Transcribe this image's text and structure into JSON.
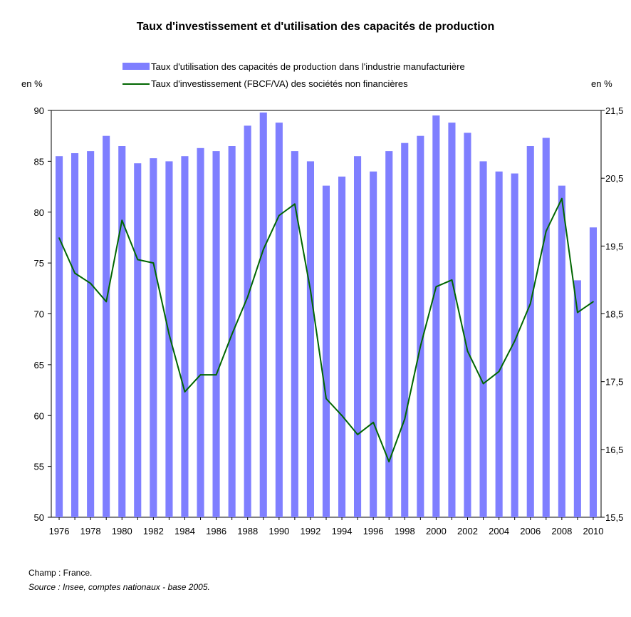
{
  "chart_data": {
    "type": "bar+line",
    "title": "Taux d'investissement et d'utilisation des capacités de production",
    "left_unit": "en %",
    "right_unit": "en %",
    "x": [
      1976,
      1977,
      1978,
      1979,
      1980,
      1981,
      1982,
      1983,
      1984,
      1985,
      1986,
      1987,
      1988,
      1989,
      1990,
      1991,
      1992,
      1993,
      1994,
      1995,
      1996,
      1997,
      1998,
      1999,
      2000,
      2001,
      2002,
      2003,
      2004,
      2005,
      2006,
      2007,
      2008,
      2009,
      2010
    ],
    "x_tick_labels": [
      "1976",
      "1978",
      "1980",
      "1982",
      "1984",
      "1986",
      "1988",
      "1990",
      "1992",
      "1994",
      "1996",
      "1998",
      "2000",
      "2002",
      "2004",
      "2006",
      "2008",
      "2010"
    ],
    "y_left": {
      "range": [
        50,
        90
      ],
      "ticks": [
        "50",
        "55",
        "60",
        "65",
        "70",
        "75",
        "80",
        "85",
        "90"
      ]
    },
    "y_right": {
      "range": [
        15.5,
        21.5
      ],
      "ticks": [
        "15,5",
        "16,5",
        "17,5",
        "18,5",
        "19,5",
        "20,5",
        "21,5"
      ]
    },
    "series": [
      {
        "name": "Taux d'utilisation des capacités de production dans l'industrie manufacturière",
        "kind": "bar",
        "axis": "left",
        "color": "#7f7fff",
        "values": [
          85.5,
          85.8,
          86.0,
          87.5,
          86.5,
          84.8,
          85.3,
          85.0,
          85.5,
          86.3,
          86.0,
          86.5,
          88.5,
          89.8,
          88.8,
          86.0,
          85.0,
          82.6,
          83.5,
          85.5,
          84.0,
          86.0,
          86.8,
          87.5,
          89.5,
          88.8,
          87.8,
          85.0,
          84.0,
          83.8,
          86.5,
          87.3,
          82.6,
          73.3,
          78.5
        ]
      },
      {
        "name": "Taux d'investissement (FBCF/VA) des sociétés non financières",
        "kind": "line",
        "axis": "right",
        "color": "#006600",
        "values": [
          19.62,
          19.1,
          18.95,
          18.68,
          19.88,
          19.3,
          19.25,
          18.2,
          17.35,
          17.6,
          17.6,
          18.2,
          18.75,
          19.45,
          19.95,
          20.12,
          18.85,
          17.25,
          17.0,
          16.72,
          16.9,
          16.32,
          16.95,
          18.02,
          18.9,
          19.0,
          17.95,
          17.47,
          17.65,
          18.1,
          18.65,
          19.72,
          20.2,
          18.52,
          18.68
        ]
      }
    ],
    "legend_position": "top-center",
    "grid": false
  },
  "footer": {
    "champ": "Champ : France.",
    "source": "Source : Insee, comptes nationaux - base 2005."
  }
}
